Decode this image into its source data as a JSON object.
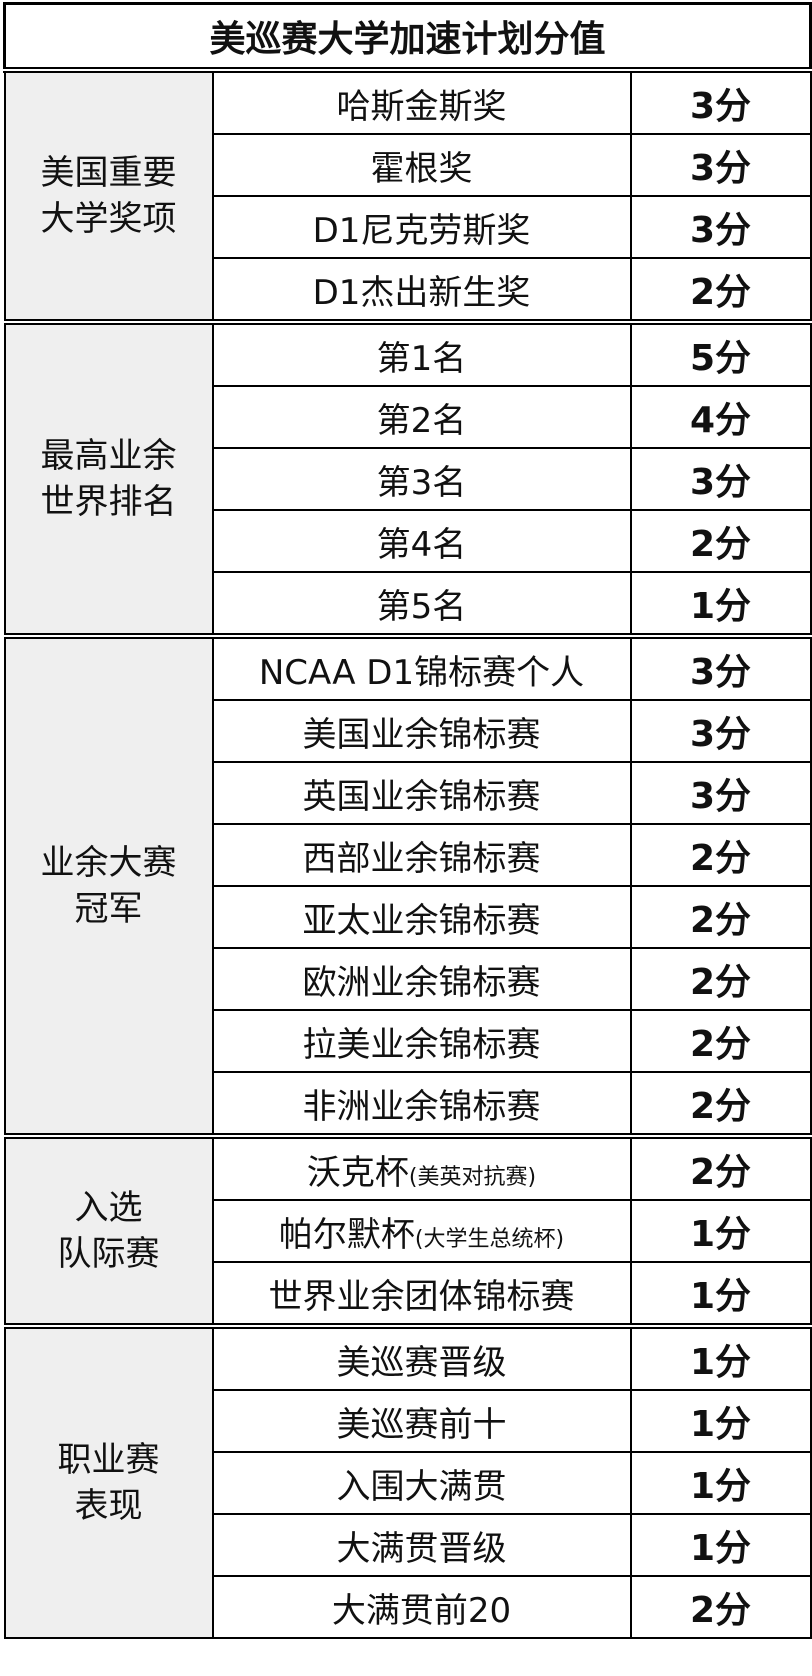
{
  "title": "美巡赛大学加速计划分值",
  "groups": [
    {
      "label": [
        "美国重要",
        "大学奖项"
      ],
      "items": [
        {
          "name": "哈斯金斯奖",
          "points": "3分"
        },
        {
          "name": "霍根奖",
          "points": "3分"
        },
        {
          "name": "D1尼克劳斯奖",
          "points": "3分"
        },
        {
          "name": "D1杰出新生奖",
          "points": "2分"
        }
      ]
    },
    {
      "label": [
        "最高业余",
        "世界排名"
      ],
      "items": [
        {
          "name": "第1名",
          "points": "5分"
        },
        {
          "name": "第2名",
          "points": "4分"
        },
        {
          "name": "第3名",
          "points": "3分"
        },
        {
          "name": "第4名",
          "points": "2分"
        },
        {
          "name": "第5名",
          "points": "1分"
        }
      ]
    },
    {
      "label": [
        "业余大赛",
        "冠军"
      ],
      "items": [
        {
          "name": "NCAA D1锦标赛个人",
          "points": "3分"
        },
        {
          "name": "美国业余锦标赛",
          "points": "3分"
        },
        {
          "name": "英国业余锦标赛",
          "points": "3分"
        },
        {
          "name": "西部业余锦标赛",
          "points": "2分"
        },
        {
          "name": "亚太业余锦标赛",
          "points": "2分"
        },
        {
          "name": "欧洲业余锦标赛",
          "points": "2分"
        },
        {
          "name": "拉美业余锦标赛",
          "points": "2分"
        },
        {
          "name": "非洲业余锦标赛",
          "points": "2分"
        }
      ]
    },
    {
      "label": [
        "入选",
        "队际赛"
      ],
      "items": [
        {
          "name": "沃克杯",
          "note": "(美英对抗赛)",
          "points": "2分"
        },
        {
          "name": "帕尔默杯",
          "note": "(大学生总统杯)",
          "points": "1分"
        },
        {
          "name": "世界业余团体锦标赛",
          "points": "1分"
        }
      ]
    },
    {
      "label": [
        "职业赛",
        "表现"
      ],
      "items": [
        {
          "name": "美巡赛晋级",
          "points": "1分"
        },
        {
          "name": "美巡赛前十",
          "points": "1分"
        },
        {
          "name": "入围大满贯",
          "points": "1分"
        },
        {
          "name": "大满贯晋级",
          "points": "1分"
        },
        {
          "name": "大满贯前20",
          "points": "2分"
        }
      ]
    }
  ]
}
